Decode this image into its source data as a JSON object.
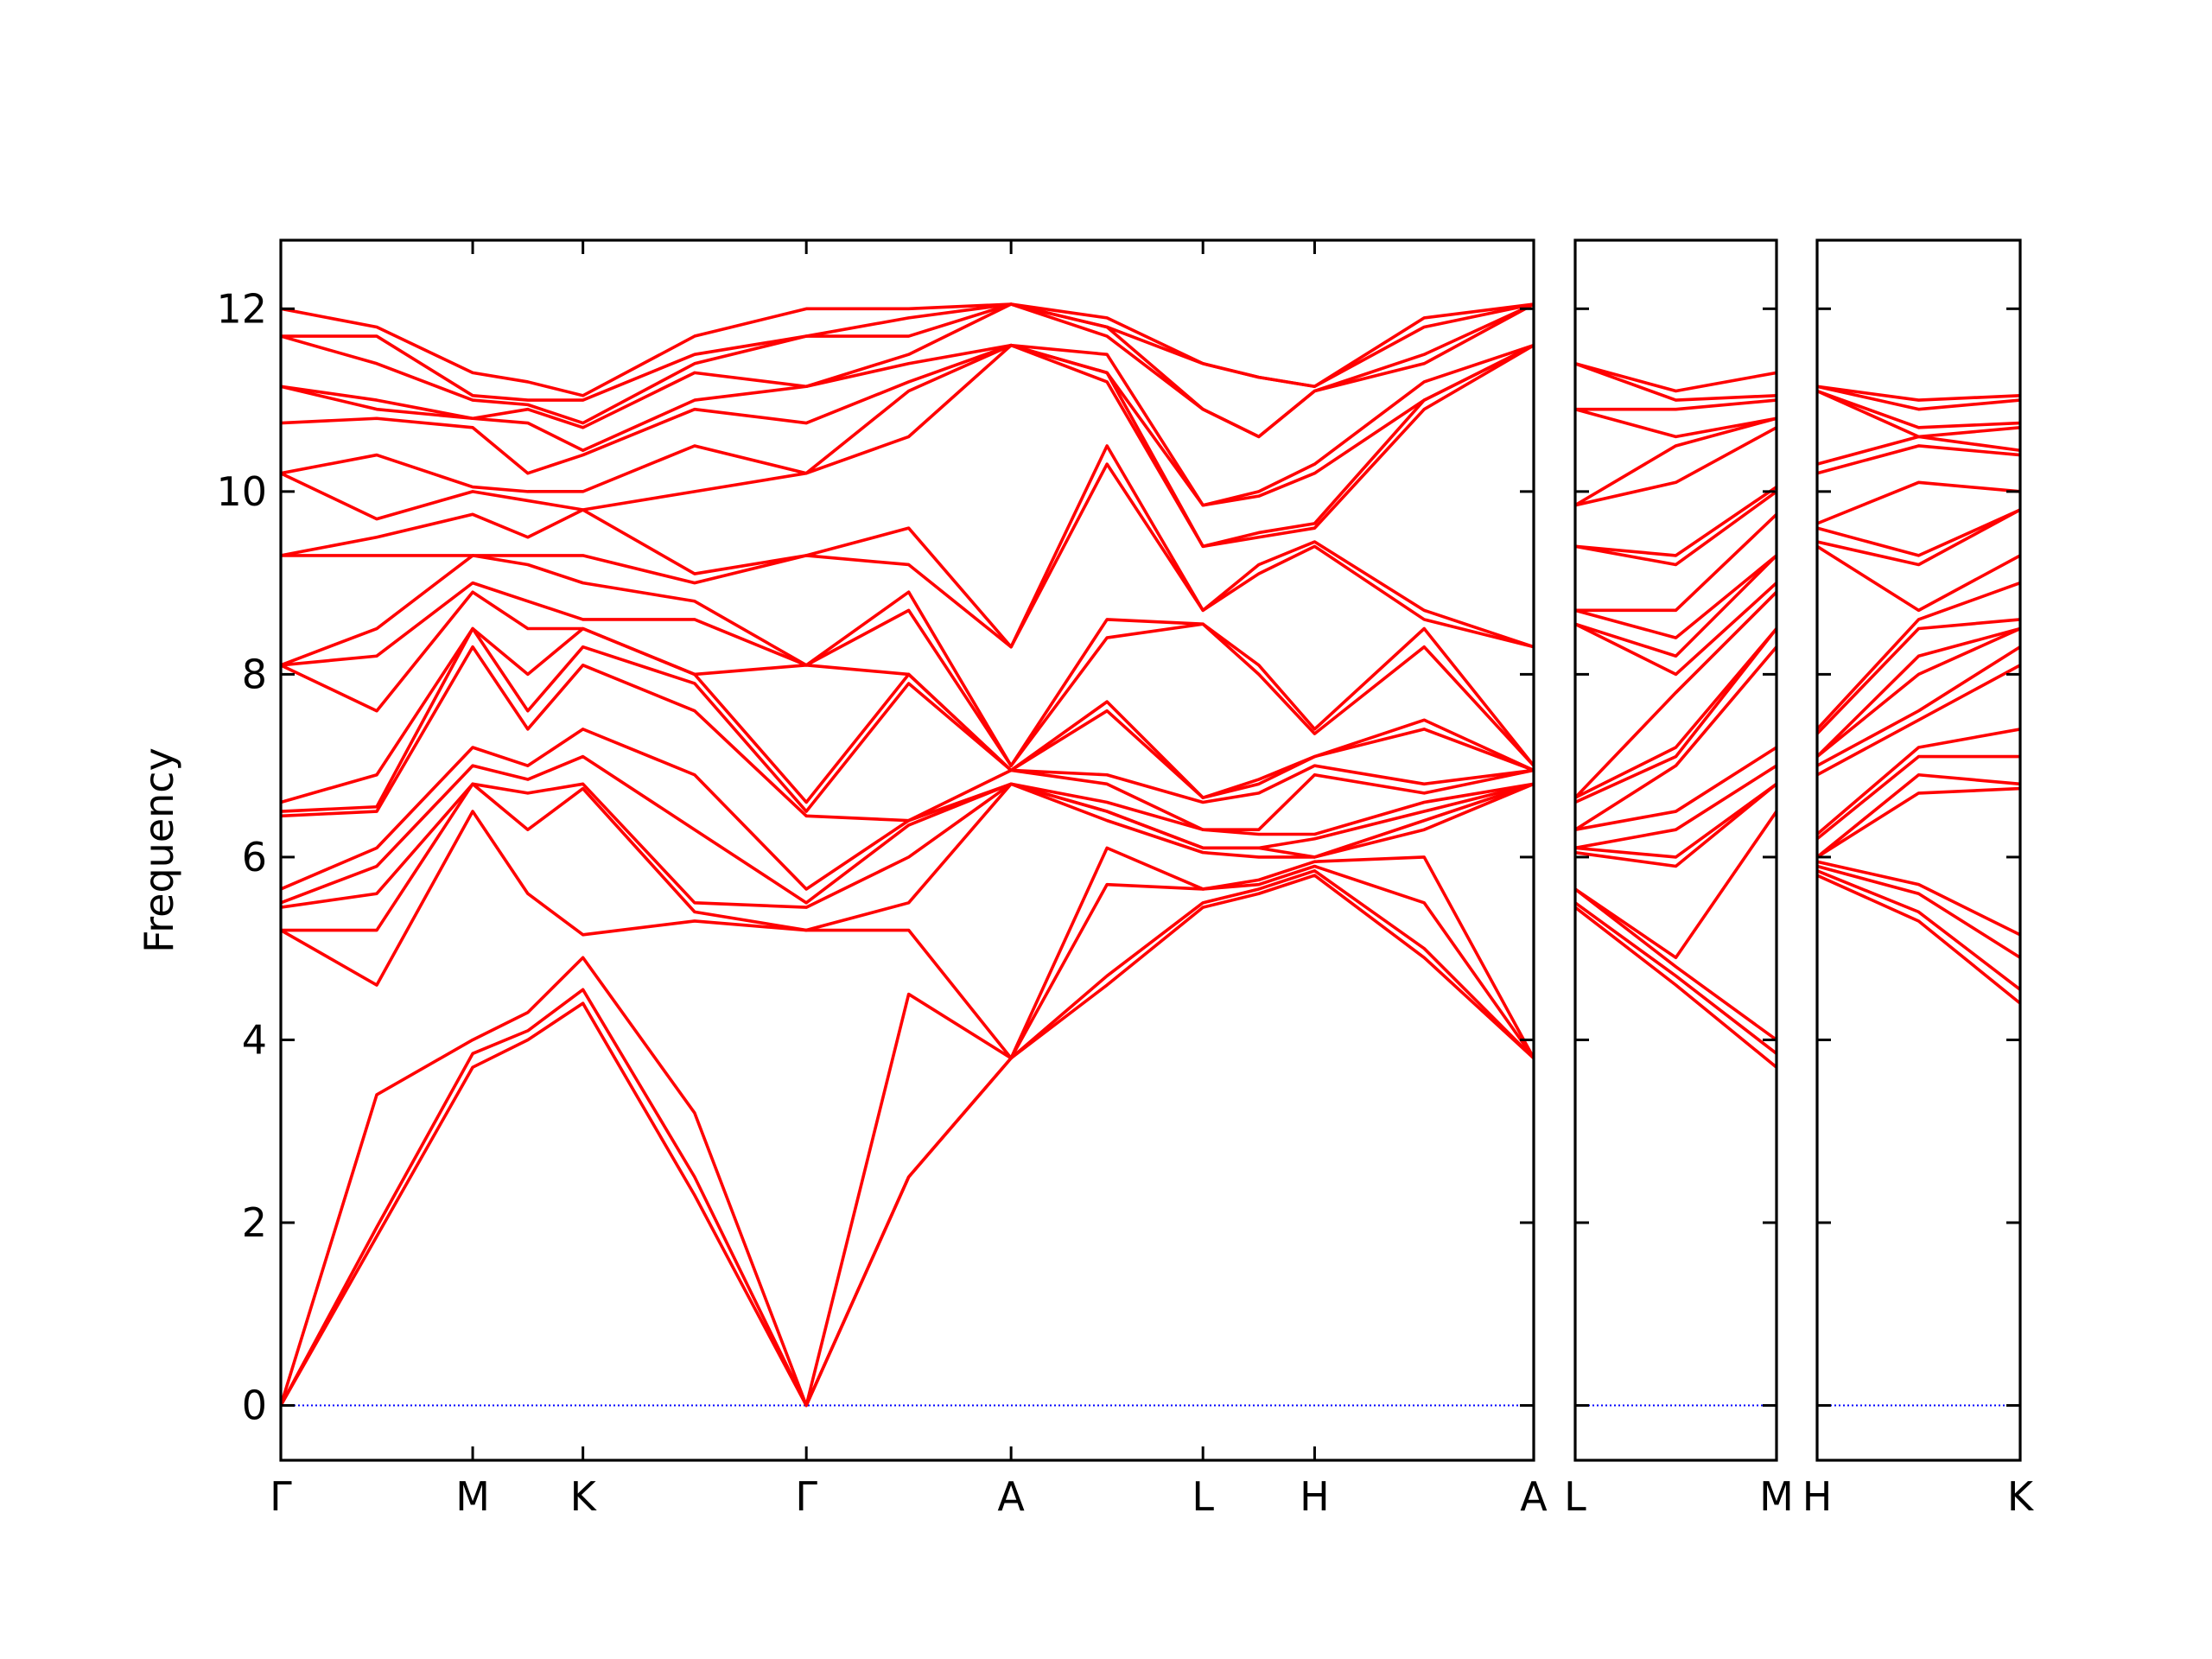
{
  "chart_data": [
    {
      "type": "line",
      "ylabel": "Frequency",
      "color": "#ff0000",
      "x": [
        0,
        0.67,
        1.34,
        1.725,
        2.11,
        2.89,
        3.67,
        4.385,
        5.1,
        5.77,
        6.44,
        6.83,
        7.22,
        7.985,
        8.75
      ],
      "xlim": [
        0,
        8.75
      ],
      "xticks": [
        {
          "value": 0,
          "label": "Γ"
        },
        {
          "value": 1.34,
          "label": "M"
        },
        {
          "value": 2.11,
          "label": "K"
        },
        {
          "value": 3.67,
          "label": "Γ"
        },
        {
          "value": 5.1,
          "label": "A"
        },
        {
          "value": 6.44,
          "label": "L"
        },
        {
          "value": 7.22,
          "label": "H"
        },
        {
          "value": 8.75,
          "label": "A"
        }
      ],
      "ylim": [
        -0.6,
        12.75
      ],
      "yticks": [
        0,
        2,
        4,
        6,
        8,
        10,
        12
      ],
      "reference_line": {
        "y": 0,
        "color": "#0000ff",
        "style": "dotted"
      },
      "series": [
        {
          "values": [
            0,
            1.85,
            3.7,
            4.0,
            4.4,
            2.3,
            0,
            2.5,
            3.8,
            4.6,
            5.45,
            5.6,
            5.8,
            4.9,
            3.8
          ]
        },
        {
          "values": [
            0,
            1.95,
            3.85,
            4.1,
            4.55,
            2.5,
            0,
            2.5,
            3.8,
            4.7,
            5.5,
            5.65,
            5.85,
            5.0,
            3.8
          ]
        },
        {
          "values": [
            0,
            3.4,
            4.0,
            4.3,
            4.9,
            3.2,
            0,
            4.5,
            3.8,
            5.7,
            5.65,
            5.7,
            5.9,
            5.5,
            3.8
          ]
        },
        {
          "values": [
            5.2,
            4.6,
            6.5,
            5.6,
            5.15,
            5.3,
            5.2,
            5.2,
            3.8,
            6.1,
            5.65,
            5.75,
            5.95,
            6.0,
            3.8
          ]
        },
        {
          "values": [
            5.2,
            5.2,
            6.8,
            6.3,
            6.75,
            5.4,
            5.2,
            5.5,
            6.8,
            6.4,
            6.05,
            6.0,
            6.0,
            6.3,
            6.8
          ]
        },
        {
          "values": [
            5.45,
            5.6,
            6.8,
            6.7,
            6.8,
            5.5,
            5.45,
            6.0,
            6.8,
            6.5,
            6.1,
            6.1,
            6.0,
            6.4,
            6.8
          ]
        },
        {
          "values": [
            5.5,
            5.9,
            7.0,
            6.85,
            7.1,
            6.3,
            5.5,
            6.35,
            6.8,
            6.5,
            6.1,
            6.1,
            6.2,
            6.5,
            6.8
          ]
        },
        {
          "values": [
            5.65,
            6.1,
            7.2,
            7.0,
            7.4,
            6.9,
            5.65,
            6.4,
            6.8,
            6.6,
            6.3,
            6.25,
            6.25,
            6.6,
            6.8
          ]
        },
        {
          "values": [
            6.45,
            6.5,
            8.3,
            7.4,
            8.1,
            7.6,
            6.45,
            6.4,
            6.95,
            6.8,
            6.3,
            6.3,
            6.9,
            6.7,
            6.95
          ]
        },
        {
          "values": [
            6.5,
            6.55,
            8.5,
            7.6,
            8.3,
            7.9,
            6.5,
            7.9,
            6.95,
            6.9,
            6.6,
            6.7,
            7.0,
            6.8,
            6.95
          ]
        },
        {
          "values": [
            6.6,
            6.9,
            8.5,
            8.0,
            8.5,
            8.0,
            6.6,
            8.0,
            6.95,
            7.6,
            6.65,
            6.8,
            7.1,
            7.4,
            6.95
          ]
        },
        {
          "values": [
            8.1,
            7.6,
            8.9,
            8.5,
            8.5,
            8.0,
            8.1,
            8.0,
            6.95,
            7.7,
            6.65,
            6.85,
            7.1,
            7.5,
            6.95
          ]
        },
        {
          "values": [
            8.1,
            8.2,
            9.0,
            8.8,
            8.6,
            8.6,
            8.1,
            8.7,
            7.0,
            8.4,
            8.55,
            8.0,
            7.35,
            8.3,
            7.0
          ]
        },
        {
          "values": [
            8.1,
            8.5,
            9.3,
            9.2,
            9.0,
            8.8,
            8.1,
            8.9,
            7.0,
            8.6,
            8.55,
            8.1,
            7.4,
            8.5,
            7.0
          ]
        },
        {
          "values": [
            9.3,
            9.3,
            9.3,
            9.3,
            9.3,
            9.0,
            9.3,
            9.2,
            8.3,
            10.3,
            8.7,
            9.1,
            9.4,
            8.6,
            8.3
          ]
        },
        {
          "values": [
            9.3,
            9.5,
            9.75,
            9.5,
            9.8,
            9.1,
            9.3,
            9.6,
            8.3,
            10.5,
            8.7,
            9.2,
            9.45,
            8.7,
            8.3
          ]
        },
        {
          "values": [
            10.2,
            9.7,
            10.0,
            9.9,
            9.8,
            10.0,
            10.2,
            10.6,
            11.6,
            11.2,
            9.4,
            9.5,
            9.6,
            10.9,
            11.6
          ]
        },
        {
          "values": [
            10.2,
            10.4,
            10.05,
            10.0,
            10.0,
            10.5,
            10.2,
            11.1,
            11.6,
            11.3,
            9.4,
            9.55,
            9.65,
            11.0,
            11.6
          ]
        },
        {
          "values": [
            10.75,
            10.8,
            10.7,
            10.2,
            10.4,
            10.9,
            10.75,
            11.2,
            11.6,
            11.3,
            9.85,
            9.95,
            10.2,
            11.0,
            11.6
          ]
        },
        {
          "values": [
            11.15,
            10.9,
            10.8,
            10.75,
            10.45,
            11.0,
            11.15,
            11.4,
            11.6,
            11.5,
            9.85,
            10.0,
            10.3,
            11.2,
            11.6
          ]
        },
        {
          "values": [
            11.15,
            11.0,
            10.8,
            10.9,
            10.7,
            11.3,
            11.15,
            11.5,
            12.05,
            11.7,
            10.9,
            10.6,
            11.1,
            11.4,
            12.05
          ]
        },
        {
          "values": [
            11.7,
            11.4,
            11.0,
            10.95,
            10.75,
            11.4,
            11.7,
            11.7,
            12.05,
            11.8,
            10.9,
            10.6,
            11.1,
            11.5,
            12.05
          ]
        },
        {
          "values": [
            11.7,
            11.7,
            11.05,
            11.0,
            11.0,
            11.5,
            11.7,
            11.9,
            12.05,
            11.8,
            11.4,
            11.25,
            11.15,
            11.8,
            12.05
          ]
        },
        {
          "values": [
            12.0,
            11.8,
            11.3,
            11.2,
            11.05,
            11.7,
            12.0,
            12.0,
            12.05,
            11.9,
            11.4,
            11.25,
            11.15,
            11.9,
            12.05
          ]
        }
      ]
    },
    {
      "type": "line",
      "color": "#ff0000",
      "x": [
        8.75,
        9.455,
        10.16
      ],
      "xlim": [
        8.75,
        10.16
      ],
      "xticks": [
        {
          "value": 8.75,
          "label": "L"
        },
        {
          "value": 10.16,
          "label": "M"
        }
      ],
      "ylim": [
        -0.6,
        12.75
      ],
      "reference_line": {
        "y": 0,
        "color": "#0000ff",
        "style": "dotted"
      },
      "series": [
        {
          "values": [
            5.45,
            4.6,
            3.7
          ]
        },
        {
          "values": [
            5.5,
            4.7,
            3.85
          ]
        },
        {
          "values": [
            5.65,
            4.8,
            4.0
          ]
        },
        {
          "values": [
            5.65,
            4.9,
            6.5
          ]
        },
        {
          "values": [
            6.05,
            5.9,
            6.8
          ]
        },
        {
          "values": [
            6.1,
            6.0,
            6.8
          ]
        },
        {
          "values": [
            6.1,
            6.3,
            7.0
          ]
        },
        {
          "values": [
            6.3,
            6.5,
            7.2
          ]
        },
        {
          "values": [
            6.3,
            7.0,
            8.3
          ]
        },
        {
          "values": [
            6.6,
            7.1,
            8.5
          ]
        },
        {
          "values": [
            6.65,
            7.2,
            8.5
          ]
        },
        {
          "values": [
            6.65,
            7.8,
            8.9
          ]
        },
        {
          "values": [
            8.55,
            8.0,
            9.0
          ]
        },
        {
          "values": [
            8.55,
            8.2,
            9.3
          ]
        },
        {
          "values": [
            8.7,
            8.4,
            9.3
          ]
        },
        {
          "values": [
            8.7,
            8.7,
            9.75
          ]
        },
        {
          "values": [
            9.4,
            9.2,
            10.0
          ]
        },
        {
          "values": [
            9.4,
            9.3,
            10.05
          ]
        },
        {
          "values": [
            9.85,
            10.1,
            10.7
          ]
        },
        {
          "values": [
            9.85,
            10.5,
            10.8
          ]
        },
        {
          "values": [
            10.9,
            10.6,
            10.8
          ]
        },
        {
          "values": [
            10.9,
            10.9,
            11.0
          ]
        },
        {
          "values": [
            11.4,
            11.0,
            11.05
          ]
        },
        {
          "values": [
            11.4,
            11.1,
            11.3
          ]
        }
      ]
    },
    {
      "type": "line",
      "color": "#ff0000",
      "x": [
        10.16,
        10.87,
        11.58
      ],
      "xlim": [
        10.16,
        11.58
      ],
      "xticks": [
        {
          "value": 10.16,
          "label": "H"
        },
        {
          "value": 11.58,
          "label": "K"
        }
      ],
      "ylim": [
        -0.6,
        12.75
      ],
      "reference_line": {
        "y": 0,
        "color": "#0000ff",
        "style": "dotted"
      },
      "series": [
        {
          "values": [
            5.8,
            5.3,
            4.4
          ]
        },
        {
          "values": [
            5.85,
            5.4,
            4.55
          ]
        },
        {
          "values": [
            5.9,
            5.6,
            4.9
          ]
        },
        {
          "values": [
            5.95,
            5.7,
            5.15
          ]
        },
        {
          "values": [
            6.0,
            6.7,
            6.75
          ]
        },
        {
          "values": [
            6.0,
            6.9,
            6.8
          ]
        },
        {
          "values": [
            6.2,
            7.1,
            7.1
          ]
        },
        {
          "values": [
            6.25,
            7.2,
            7.4
          ]
        },
        {
          "values": [
            6.9,
            7.5,
            8.1
          ]
        },
        {
          "values": [
            7.0,
            7.6,
            8.3
          ]
        },
        {
          "values": [
            7.1,
            8.0,
            8.5
          ]
        },
        {
          "values": [
            7.1,
            8.2,
            8.5
          ]
        },
        {
          "values": [
            7.35,
            8.5,
            8.6
          ]
        },
        {
          "values": [
            7.4,
            8.6,
            9.0
          ]
        },
        {
          "values": [
            9.4,
            8.7,
            9.3
          ]
        },
        {
          "values": [
            9.45,
            9.2,
            9.8
          ]
        },
        {
          "values": [
            9.6,
            9.3,
            9.8
          ]
        },
        {
          "values": [
            9.65,
            10.1,
            10.0
          ]
        },
        {
          "values": [
            10.2,
            10.5,
            10.4
          ]
        },
        {
          "values": [
            10.3,
            10.6,
            10.45
          ]
        },
        {
          "values": [
            11.1,
            10.6,
            10.7
          ]
        },
        {
          "values": [
            11.1,
            10.7,
            10.75
          ]
        },
        {
          "values": [
            11.15,
            10.9,
            11.0
          ]
        },
        {
          "values": [
            11.15,
            11.0,
            11.05
          ]
        }
      ]
    }
  ]
}
